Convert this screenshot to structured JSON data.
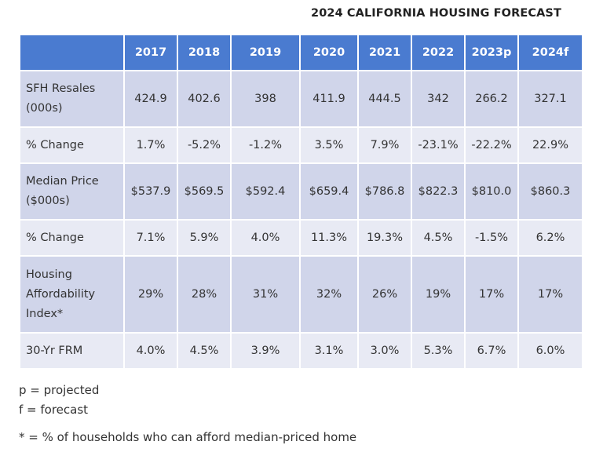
{
  "chart_data": {
    "type": "table",
    "title": "2024 CALIFORNIA HOUSING FORECAST",
    "columns": [
      "2017",
      "2018",
      "2019",
      "2020",
      "2021",
      "2022",
      "2023p",
      "2024f"
    ],
    "rows": [
      {
        "label": "SFH Resales (000s)",
        "values": [
          "424.9",
          "402.6",
          "398",
          "411.9",
          "444.5",
          "342",
          "266.2",
          "327.1"
        ]
      },
      {
        "label": "% Change",
        "values": [
          "1.7%",
          "-5.2%",
          "-1.2%",
          "3.5%",
          "7.9%",
          "-23.1%",
          "-22.2%",
          "22.9%"
        ]
      },
      {
        "label": "Median Price ($000s)",
        "values": [
          "$537.9",
          "$569.5",
          "$592.4",
          "$659.4",
          "$786.8",
          "$822.3",
          "$810.0",
          "$860.3"
        ]
      },
      {
        "label": "% Change",
        "values": [
          "7.1%",
          "5.9%",
          "4.0%",
          "11.3%",
          "19.3%",
          "4.5%",
          "-1.5%",
          "6.2%"
        ]
      },
      {
        "label": "Housing Affordability Index*",
        "values": [
          "29%",
          "28%",
          "31%",
          "32%",
          "26%",
          "19%",
          "17%",
          "17%"
        ]
      },
      {
        "label": "30-Yr FRM",
        "values": [
          "4.0%",
          "4.5%",
          "3.9%",
          "3.1%",
          "3.0%",
          "5.3%",
          "6.7%",
          "6.0%"
        ]
      }
    ]
  },
  "notes": {
    "projected": "p = projected",
    "forecast": "f = forecast",
    "footnote": "* = % of households who can afford median-priced home"
  },
  "colors": {
    "header_bg": "#4a7bd0",
    "row_dark": "#d0d5ea",
    "row_light": "#e8eaf4"
  }
}
